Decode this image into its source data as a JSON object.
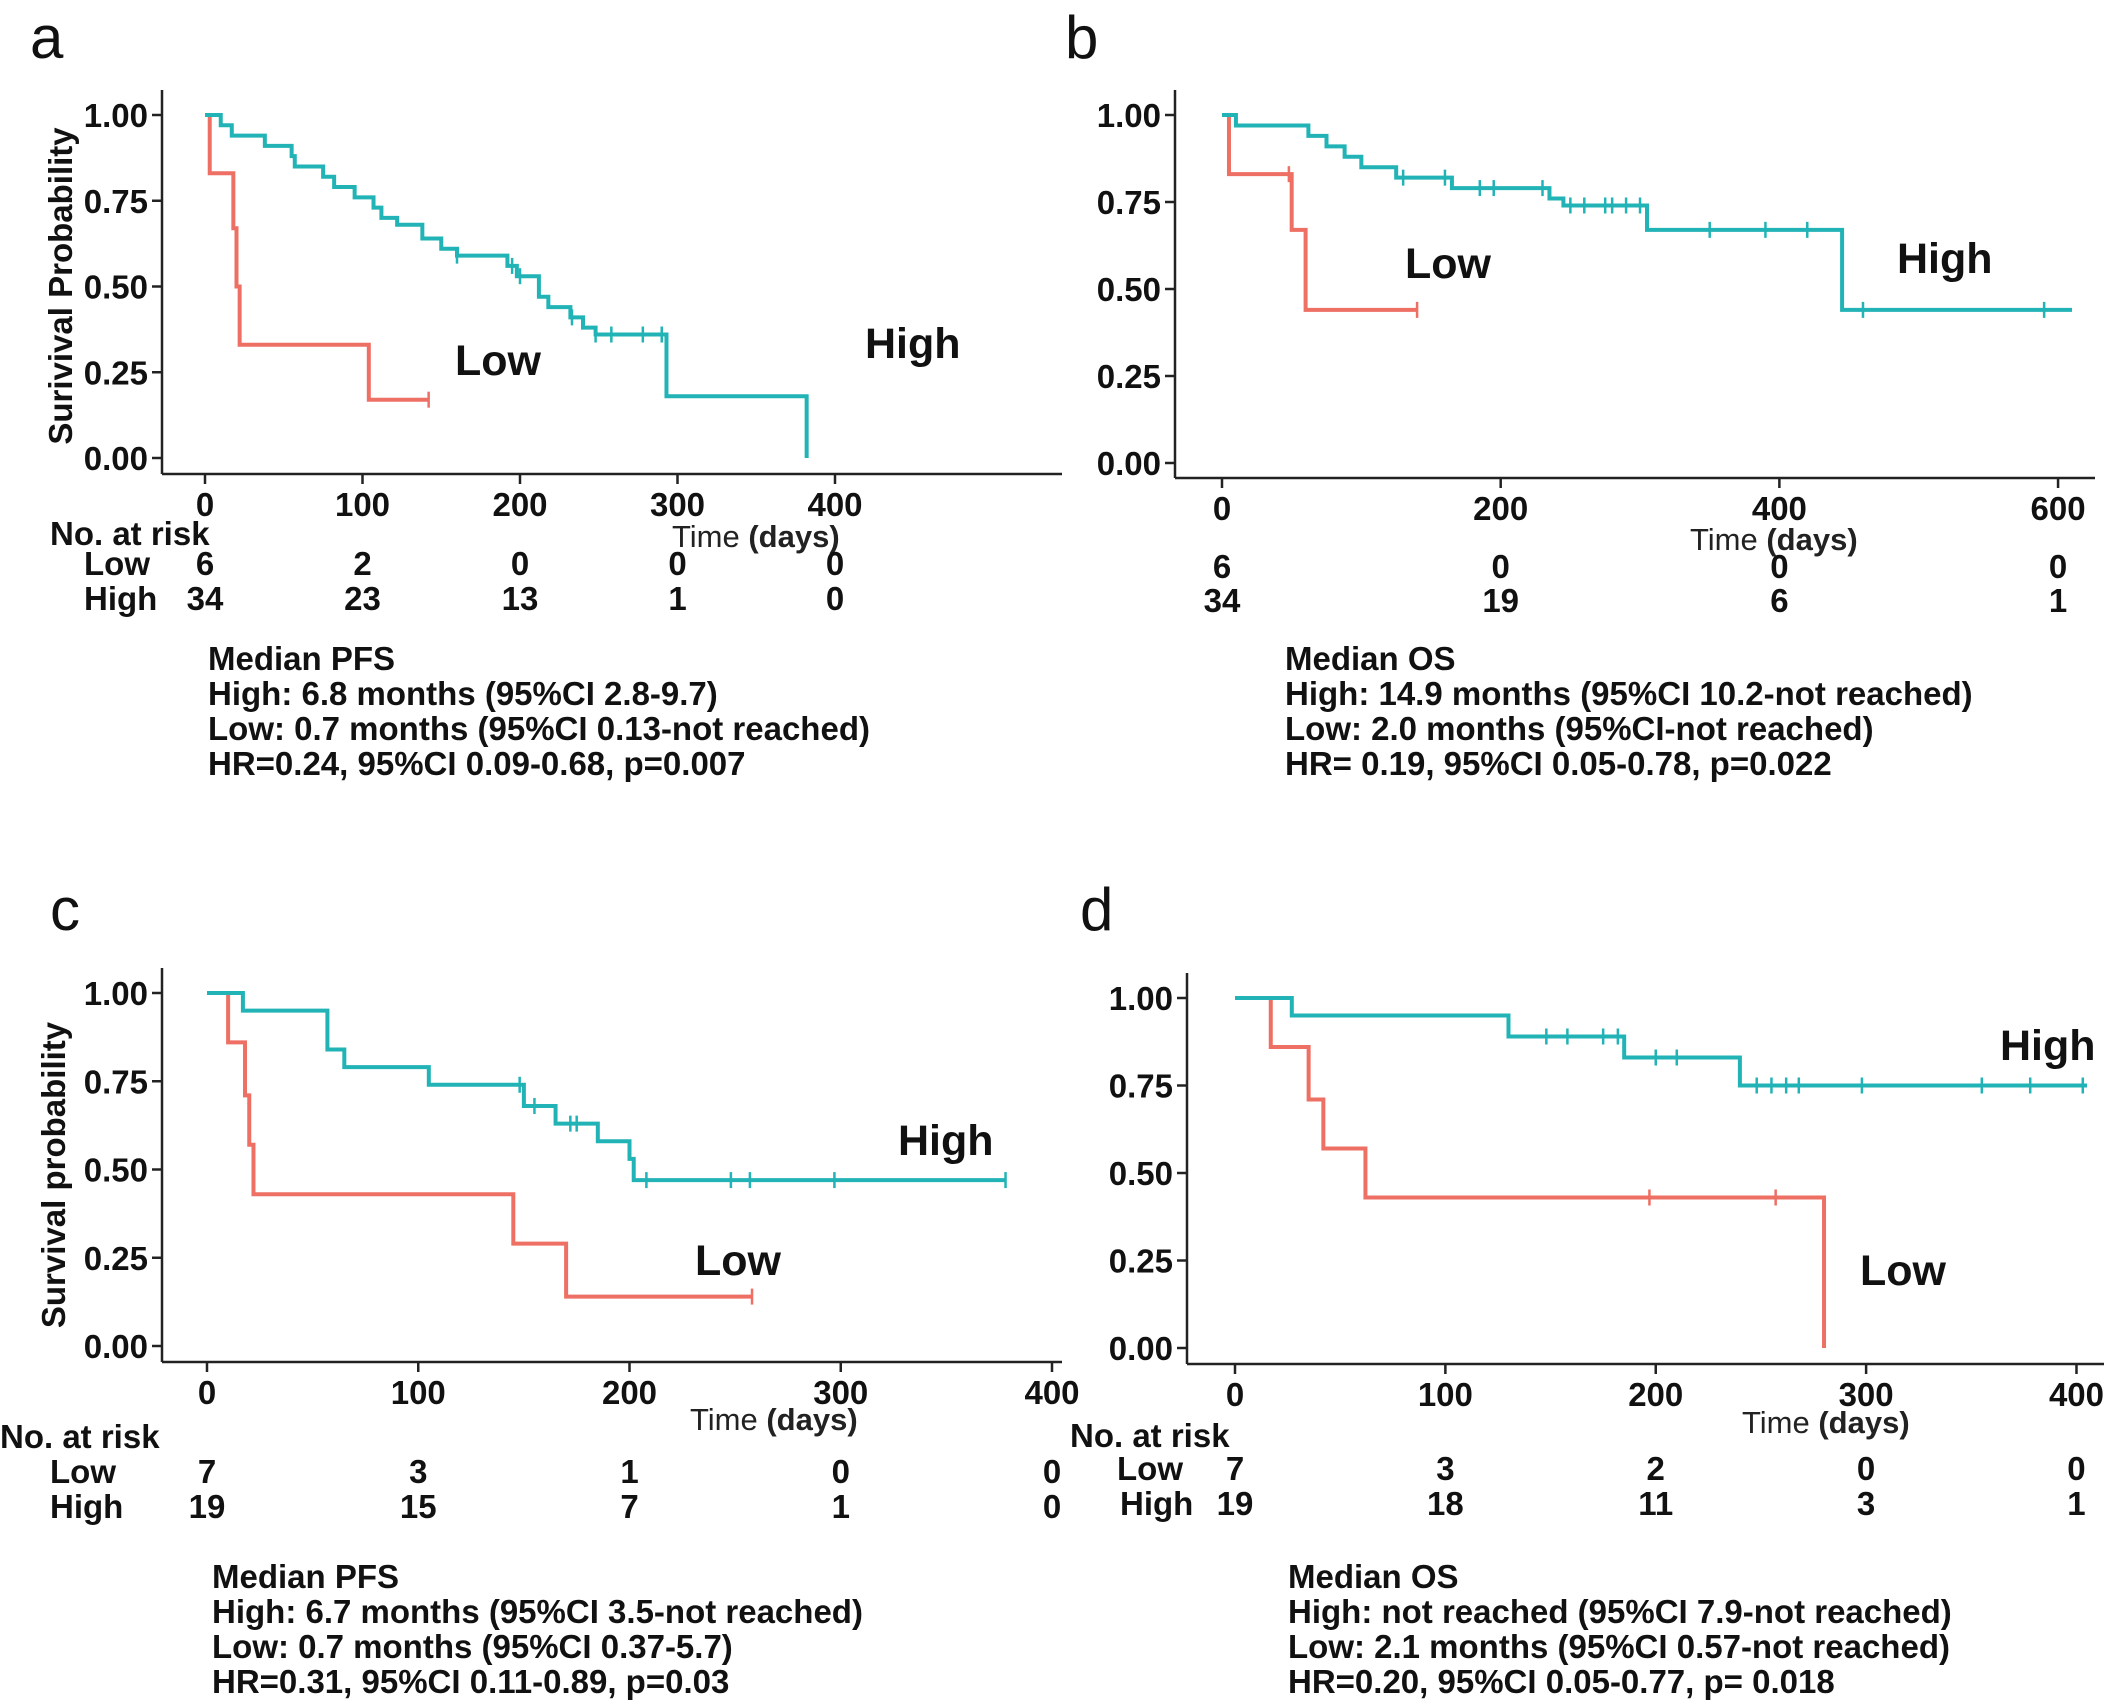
{
  "colors": {
    "high": "#21b3b5",
    "low": "#ee6f63",
    "axis": "#222222"
  },
  "chart_data": [
    {
      "type": "line",
      "panel_label": "a",
      "ylabel": "Surivival Probability",
      "xlabel_time": "Time",
      "xlabel_unit": "(days)",
      "xlim": [
        0,
        400
      ],
      "ylim": [
        0,
        1
      ],
      "x_ticks": [
        "0",
        "100",
        "200",
        "300",
        "400"
      ],
      "y_ticks": [
        "0.00",
        "0.25",
        "0.50",
        "0.75",
        "1.00"
      ],
      "curve_labels": {
        "high": "High",
        "low": "Low"
      },
      "series": [
        {
          "name": "High",
          "steps": [
            [
              0,
              1.0
            ],
            [
              10,
              0.97
            ],
            [
              17,
              0.94
            ],
            [
              38,
              0.91
            ],
            [
              55,
              0.88
            ],
            [
              57,
              0.85
            ],
            [
              75,
              0.82
            ],
            [
              82,
              0.79
            ],
            [
              95,
              0.76
            ],
            [
              107,
              0.73
            ],
            [
              112,
              0.7
            ],
            [
              122,
              0.68
            ],
            [
              138,
              0.64
            ],
            [
              150,
              0.61
            ],
            [
              160,
              0.59
            ],
            [
              192,
              0.56
            ],
            [
              198,
              0.53
            ],
            [
              212,
              0.47
            ],
            [
              218,
              0.44
            ],
            [
              232,
              0.41
            ],
            [
              240,
              0.38
            ],
            [
              248,
              0.36
            ],
            [
              293,
              0.18
            ],
            [
              382,
              0.0
            ]
          ],
          "censor": [
            160,
            195,
            200,
            233,
            248,
            258,
            278,
            290
          ]
        },
        {
          "name": "Low",
          "steps": [
            [
              0,
              1.0
            ],
            [
              3,
              0.83
            ],
            [
              18,
              0.67
            ],
            [
              20,
              0.5
            ],
            [
              22,
              0.33
            ],
            [
              104,
              0.17
            ],
            [
              142,
              0.17
            ]
          ],
          "censor": [
            142
          ]
        }
      ],
      "risk_table": {
        "title": "No. at risk",
        "low_label": "Low",
        "high_label": "High",
        "low": [
          "6",
          "2",
          "0",
          "0",
          "0"
        ],
        "high": [
          "34",
          "23",
          "13",
          "1",
          "0"
        ]
      },
      "summary": [
        "Median PFS",
        "High: 6.8 months (95%CI 2.8-9.7)",
        "Low: 0.7 months (95%CI 0.13-not reached)",
        "HR=0.24, 95%CI 0.09-0.68, p=0.007"
      ]
    },
    {
      "type": "line",
      "panel_label": "b",
      "ylabel": "",
      "xlabel_time": "Time",
      "xlabel_unit": "(days)",
      "xlim": [
        0,
        610
      ],
      "ylim": [
        0,
        1
      ],
      "x_ticks": [
        "0",
        "200",
        "400",
        "600"
      ],
      "y_ticks": [
        "0.00",
        "0.25",
        "0.50",
        "0.75",
        "1.00"
      ],
      "curve_labels": {
        "high": "High",
        "low": "Low"
      },
      "series": [
        {
          "name": "High",
          "steps": [
            [
              0,
              1.0
            ],
            [
              10,
              0.97
            ],
            [
              62,
              0.94
            ],
            [
              75,
              0.91
            ],
            [
              88,
              0.88
            ],
            [
              100,
              0.85
            ],
            [
              125,
              0.82
            ],
            [
              165,
              0.79
            ],
            [
              235,
              0.76
            ],
            [
              245,
              0.74
            ],
            [
              305,
              0.67
            ],
            [
              445,
              0.44
            ],
            [
              610,
              0.44
            ]
          ],
          "censor": [
            130,
            160,
            185,
            195,
            230,
            250,
            260,
            275,
            280,
            290,
            300,
            350,
            390,
            420,
            460,
            590
          ]
        },
        {
          "name": "Low",
          "steps": [
            [
              0,
              1.0
            ],
            [
              5,
              0.83
            ],
            [
              50,
              0.67
            ],
            [
              60,
              0.44
            ],
            [
              140,
              0.44
            ]
          ],
          "censor": [
            48,
            140
          ]
        }
      ],
      "risk_table": {
        "title": "",
        "low_label": "",
        "high_label": "",
        "low": [
          "6",
          "0",
          "0",
          "0"
        ],
        "high": [
          "34",
          "19",
          "6",
          "1"
        ]
      },
      "summary": [
        "Median OS",
        "High: 14.9 months (95%CI 10.2-not reached)",
        "Low: 2.0 months (95%CI-not reached)",
        "HR= 0.19, 95%CI 0.05-0.78, p=0.022"
      ]
    },
    {
      "type": "line",
      "panel_label": "c",
      "ylabel": "Survival probability",
      "xlabel_time": "Time",
      "xlabel_unit": "(days)",
      "xlim": [
        0,
        400
      ],
      "ylim": [
        0,
        1
      ],
      "x_ticks": [
        "0",
        "100",
        "200",
        "300",
        "400"
      ],
      "y_ticks": [
        "0.00",
        "0.25",
        "0.50",
        "0.75",
        "1.00"
      ],
      "curve_labels": {
        "high": "High",
        "low": "Low"
      },
      "series": [
        {
          "name": "High",
          "steps": [
            [
              0,
              1.0
            ],
            [
              17,
              0.95
            ],
            [
              57,
              0.84
            ],
            [
              65,
              0.79
            ],
            [
              105,
              0.74
            ],
            [
              150,
              0.68
            ],
            [
              165,
              0.63
            ],
            [
              185,
              0.58
            ],
            [
              200,
              0.53
            ],
            [
              202,
              0.47
            ],
            [
              378,
              0.47
            ]
          ],
          "censor": [
            148,
            155,
            172,
            175,
            208,
            248,
            257,
            297,
            378
          ]
        },
        {
          "name": "Low",
          "steps": [
            [
              0,
              1.0
            ],
            [
              10,
              0.86
            ],
            [
              18,
              0.71
            ],
            [
              20,
              0.57
            ],
            [
              22,
              0.43
            ],
            [
              145,
              0.29
            ],
            [
              170,
              0.14
            ],
            [
              258,
              0.14
            ]
          ],
          "censor": [
            258
          ]
        }
      ],
      "risk_table": {
        "title": "No. at risk",
        "low_label": "Low",
        "high_label": "High",
        "low": [
          "7",
          "3",
          "1",
          "0",
          "0"
        ],
        "high": [
          "19",
          "15",
          "7",
          "1",
          "0"
        ]
      },
      "summary": [
        "Median PFS",
        "High: 6.7 months (95%CI 3.5-not reached)",
        "Low: 0.7 months (95%CI 0.37-5.7)",
        "HR=0.31, 95%CI 0.11-0.89, p=0.03"
      ]
    },
    {
      "type": "line",
      "panel_label": "d",
      "ylabel": "",
      "xlabel_time": "Time",
      "xlabel_unit": "(days)",
      "xlim": [
        0,
        405
      ],
      "ylim": [
        0,
        1
      ],
      "x_ticks": [
        "0",
        "100",
        "200",
        "300",
        "400"
      ],
      "y_ticks": [
        "0.00",
        "0.25",
        "0.50",
        "0.75",
        "1.00"
      ],
      "curve_labels": {
        "high": "High",
        "low": "Low"
      },
      "series": [
        {
          "name": "High",
          "steps": [
            [
              0,
              1.0
            ],
            [
              27,
              0.95
            ],
            [
              130,
              0.89
            ],
            [
              185,
              0.83
            ],
            [
              240,
              0.75
            ],
            [
              405,
              0.75
            ]
          ],
          "censor": [
            148,
            158,
            175,
            182,
            200,
            210,
            248,
            255,
            262,
            268,
            298,
            355,
            378,
            403
          ]
        },
        {
          "name": "Low",
          "steps": [
            [
              0,
              1.0
            ],
            [
              17,
              0.86
            ],
            [
              35,
              0.71
            ],
            [
              42,
              0.57
            ],
            [
              62,
              0.43
            ],
            [
              280,
              0.0
            ]
          ],
          "censor": [
            197,
            257
          ]
        }
      ],
      "risk_table": {
        "title": "No. at risk",
        "low_label": "Low",
        "high_label": "High",
        "low": [
          "7",
          "3",
          "2",
          "0",
          "0"
        ],
        "high": [
          "19",
          "18",
          "11",
          "3",
          "1"
        ]
      },
      "summary": [
        "Median OS",
        "High: not reached (95%CI 7.9-not reached)",
        "Low: 2.1 months (95%CI 0.57-not reached)",
        "HR=0.20, 95%CI 0.05-0.77, p= 0.018"
      ]
    }
  ]
}
